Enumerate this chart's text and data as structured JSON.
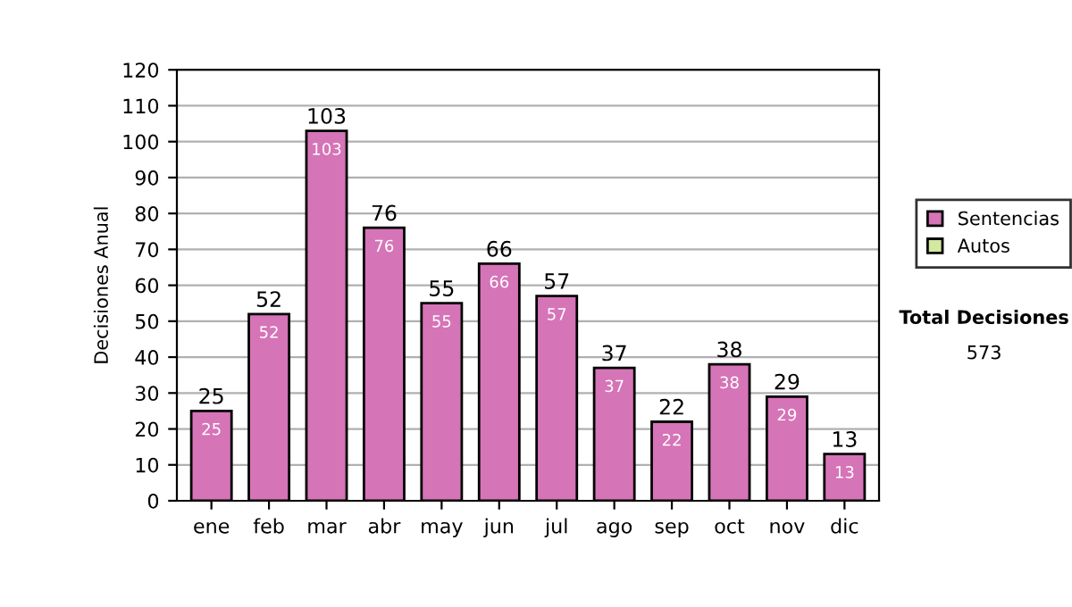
{
  "chart_data": {
    "type": "bar",
    "stacked": true,
    "ylabel": "Decisiones Anual",
    "categories": [
      "ene",
      "feb",
      "mar",
      "abr",
      "may",
      "jun",
      "jul",
      "ago",
      "sep",
      "oct",
      "nov",
      "dic"
    ],
    "series": [
      {
        "name": "Sentencias",
        "color": "#d674b8",
        "values": [
          25,
          52,
          103,
          76,
          55,
          66,
          57,
          37,
          22,
          38,
          29,
          13
        ],
        "value_labels": [
          "25",
          "52",
          "103",
          "76",
          "55",
          "66",
          "57",
          "37",
          "22",
          "38",
          "29",
          "13"
        ]
      },
      {
        "name": "Autos",
        "color": "#d4e8a0",
        "values": [
          0,
          0,
          0,
          0,
          0,
          0,
          0,
          0,
          0,
          0,
          0,
          0
        ]
      }
    ],
    "totals": [
      "25",
      "52",
      "103",
      "76",
      "55",
      "66",
      "57",
      "37",
      "22",
      "38",
      "29",
      "13"
    ],
    "ylim": [
      0,
      120
    ],
    "yticks": [
      0,
      10,
      20,
      30,
      40,
      50,
      60,
      70,
      80,
      90,
      100,
      110,
      120
    ],
    "grid": "y",
    "legend": "right",
    "annotations": [
      "Total Decisiones",
      "573"
    ]
  }
}
